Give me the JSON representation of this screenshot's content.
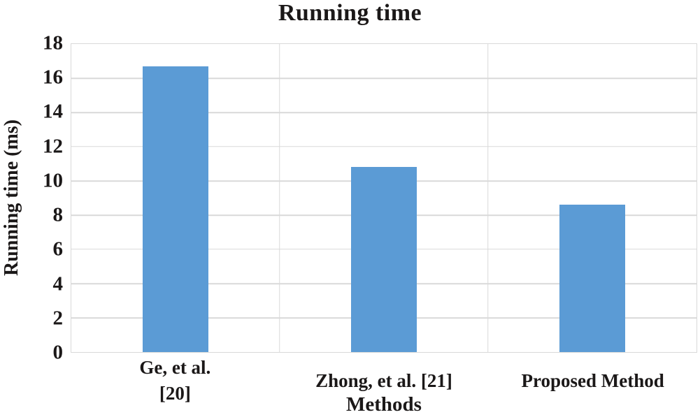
{
  "chart_data": {
    "type": "bar",
    "title": "Running time",
    "categories": [
      "Ge, et al.\n[20]",
      "Zhong, et al. [21]",
      "Proposed Method"
    ],
    "values": [
      16.7,
      10.8,
      8.6
    ],
    "xlabel": "Methods",
    "ylabel": "Running time (ms)",
    "ylim": [
      0,
      18
    ],
    "yticks": [
      0,
      2,
      4,
      6,
      8,
      10,
      12,
      14,
      16,
      18
    ],
    "legend": "none",
    "grid": {
      "horizontal_gridlines": true,
      "vertical_category_dividers": true,
      "plot_border": true
    },
    "colors": {
      "bar": "#5B9BD5",
      "gridline": "#D9D9D9",
      "text": "#1B1818",
      "background": "#FFFFFF"
    }
  }
}
